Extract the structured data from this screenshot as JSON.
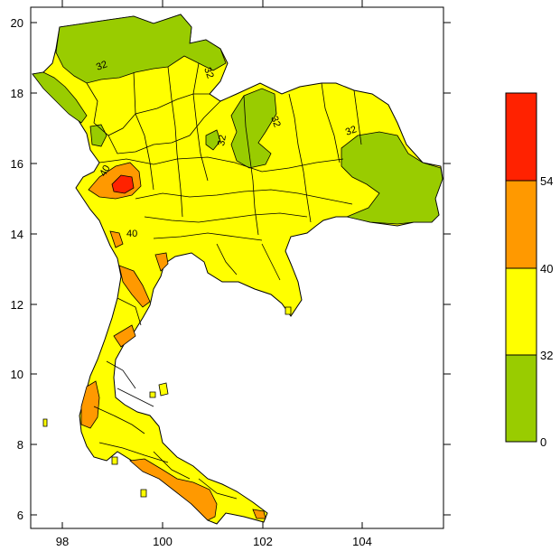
{
  "map": {
    "lon_range": [
      97.3,
      105.7
    ],
    "lat_range": [
      5.6,
      20.4
    ],
    "x_ticks": [
      "98",
      "100",
      "102",
      "104"
    ],
    "y_ticks": [
      "20",
      "18",
      "16",
      "14",
      "12",
      "10",
      "8",
      "6"
    ],
    "contour_labels": [
      "32",
      "32",
      "32",
      "32",
      "40",
      "40",
      "32"
    ]
  },
  "colorbar": {
    "bins": [
      {
        "range": [
          0,
          32
        ],
        "color": "#99cc00"
      },
      {
        "range": [
          32,
          40
        ],
        "color": "#ffff00"
      },
      {
        "range": [
          40,
          54
        ],
        "color": "#ff9900"
      },
      {
        "range": [
          54,
          70
        ],
        "color": "#ff2200"
      }
    ],
    "labels": [
      "54",
      "40",
      "32",
      "0"
    ]
  },
  "colors": {
    "land_base": "#ffff00",
    "low": "#99cc00",
    "mid": "#ff9900",
    "high": "#ff2200",
    "border": "#000000"
  }
}
